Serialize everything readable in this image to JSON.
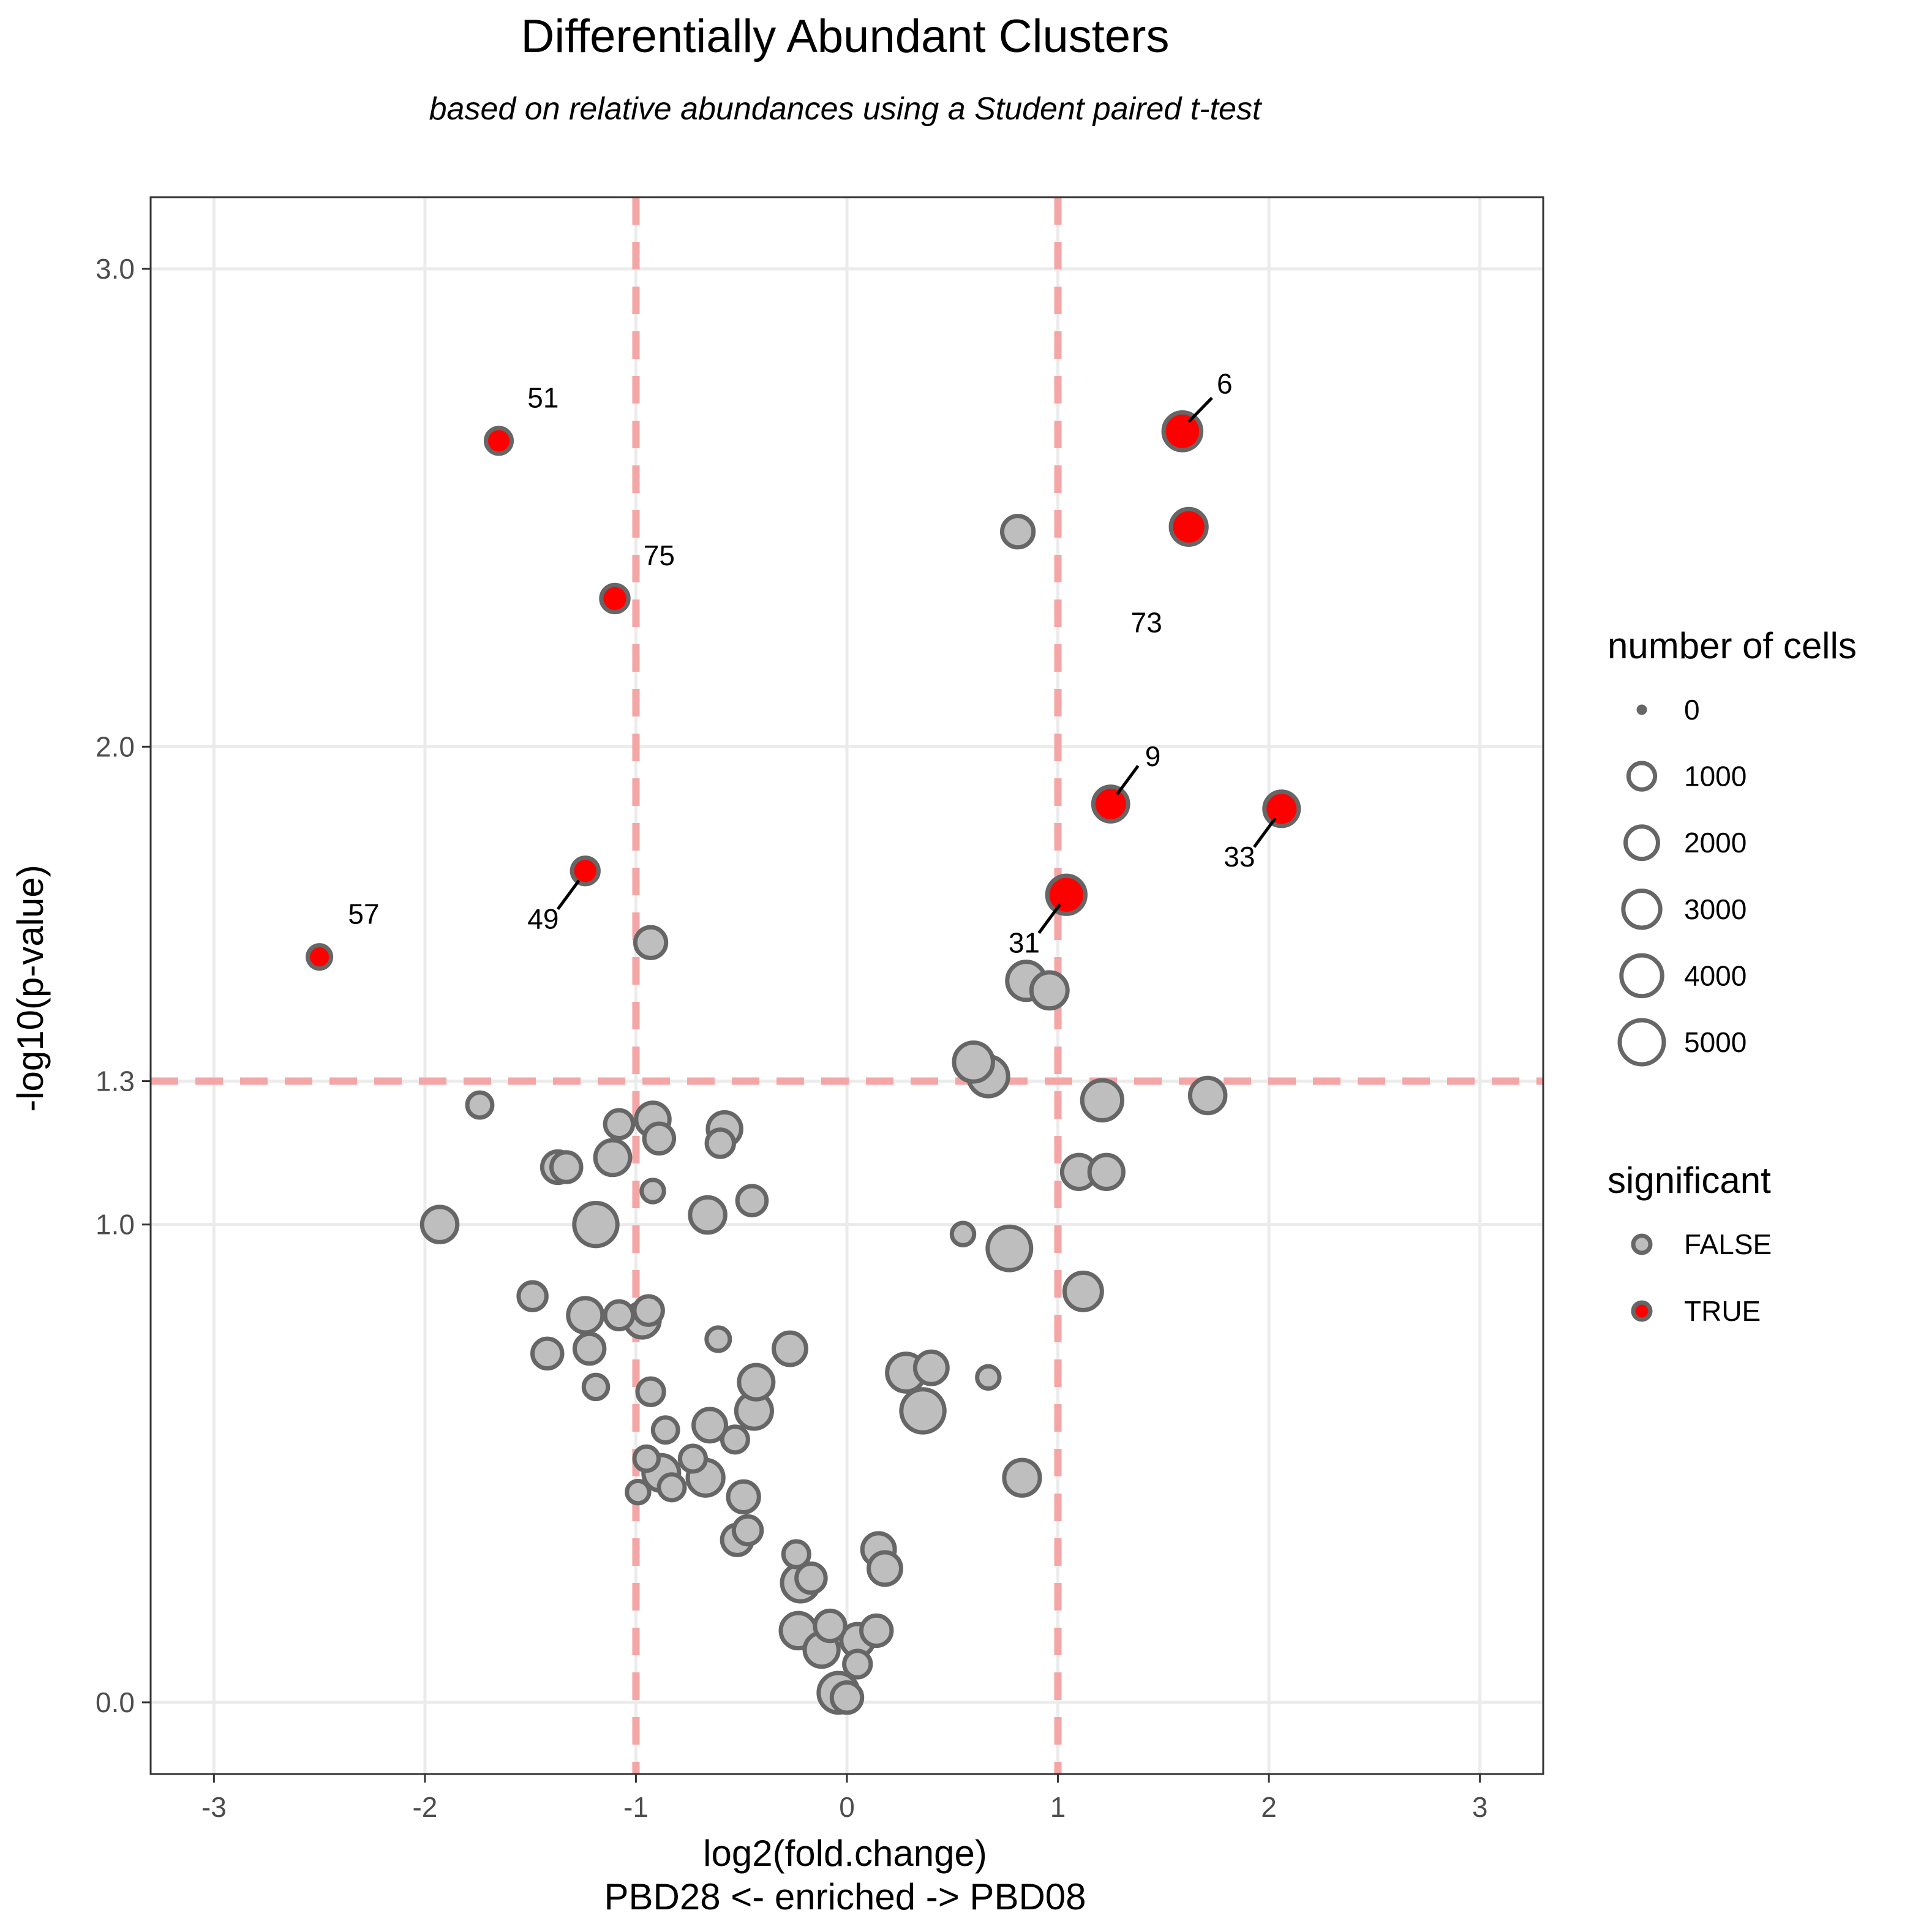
{
  "chart_data": {
    "type": "scatter",
    "title": "Differentially Abundant Clusters",
    "subtitle": "based on relative abundances using a Student paired t-test",
    "xlabel": "log2(fold.change)",
    "xlabel2": "PBD28 <- enriched -> PBD08",
    "ylabel": "-log10(p-value)",
    "xlim": [
      -3.3,
      3.3
    ],
    "ylim": [
      -0.15,
      3.15
    ],
    "x_ticks": [
      -3,
      -2,
      -1,
      0,
      1,
      2,
      3
    ],
    "x_tick_labels": [
      "-3",
      "-2",
      "-1",
      "0",
      "1",
      "2",
      "3"
    ],
    "y_ticks": [
      0.0,
      1.0,
      1.3,
      2.0,
      3.0
    ],
    "y_tick_labels": [
      "0.0",
      "1.0",
      "1.3",
      "2.0",
      "3.0"
    ],
    "thresholds": {
      "x": [
        -1,
        1
      ],
      "y": 1.3
    },
    "colors": {
      "significant": "#ff0000",
      "not_significant": "#bebebe",
      "stroke": "#666666",
      "threshold": "#f4a6a6",
      "grid": "#ebebeb"
    },
    "legend": {
      "size_title": "number of cells",
      "size_values": [
        0,
        1000,
        2000,
        3000,
        4000,
        5000
      ],
      "size_labels": [
        "0",
        "1000",
        "2000",
        "3000",
        "4000",
        "5000"
      ],
      "sig_title": "significant",
      "sig_labels": [
        "FALSE",
        "TRUE"
      ],
      "placement": "right"
    },
    "points": [
      {
        "x": 1.59,
        "y": 2.66,
        "cells": 3200,
        "sig": true,
        "label": "6"
      },
      {
        "x": 1.62,
        "y": 2.46,
        "cells": 2700,
        "sig": true,
        "label": "73"
      },
      {
        "x": -1.65,
        "y": 2.64,
        "cells": 900,
        "sig": true,
        "label": "51"
      },
      {
        "x": -1.1,
        "y": 2.31,
        "cells": 1100,
        "sig": true,
        "label": "75"
      },
      {
        "x": 1.25,
        "y": 1.88,
        "cells": 2500,
        "sig": true,
        "label": "9"
      },
      {
        "x": 2.06,
        "y": 1.87,
        "cells": 2400,
        "sig": true,
        "label": "33"
      },
      {
        "x": 1.04,
        "y": 1.69,
        "cells": 3300,
        "sig": true,
        "label": "31"
      },
      {
        "x": -1.24,
        "y": 1.74,
        "cells": 1000,
        "sig": true,
        "label": "49"
      },
      {
        "x": -2.5,
        "y": 1.56,
        "cells": 600,
        "sig": true,
        "label": "57"
      },
      {
        "x": 0.81,
        "y": 2.45,
        "cells": 1800,
        "sig": false
      },
      {
        "x": -0.93,
        "y": 1.59,
        "cells": 1700,
        "sig": false
      },
      {
        "x": 0.85,
        "y": 1.51,
        "cells": 3300,
        "sig": false
      },
      {
        "x": 0.96,
        "y": 1.49,
        "cells": 2800,
        "sig": false
      },
      {
        "x": 0.6,
        "y": 1.34,
        "cells": 3500,
        "sig": false
      },
      {
        "x": 0.67,
        "y": 1.31,
        "cells": 3700,
        "sig": false
      },
      {
        "x": 1.21,
        "y": 1.26,
        "cells": 3800,
        "sig": false
      },
      {
        "x": 1.71,
        "y": 1.27,
        "cells": 2600,
        "sig": false
      },
      {
        "x": 1.1,
        "y": 1.11,
        "cells": 2300,
        "sig": false
      },
      {
        "x": 1.23,
        "y": 1.11,
        "cells": 2300,
        "sig": false
      },
      {
        "x": 1.12,
        "y": 0.86,
        "cells": 3100,
        "sig": false
      },
      {
        "x": 0.77,
        "y": 0.95,
        "cells": 4800,
        "sig": false
      },
      {
        "x": 0.55,
        "y": 0.98,
        "cells": 500,
        "sig": false
      },
      {
        "x": -1.74,
        "y": 1.25,
        "cells": 800,
        "sig": false
      },
      {
        "x": -1.08,
        "y": 1.21,
        "cells": 1200,
        "sig": false
      },
      {
        "x": -0.92,
        "y": 1.22,
        "cells": 2200,
        "sig": false
      },
      {
        "x": -0.89,
        "y": 1.18,
        "cells": 1500,
        "sig": false
      },
      {
        "x": -0.58,
        "y": 1.2,
        "cells": 2200,
        "sig": false
      },
      {
        "x": -0.6,
        "y": 1.17,
        "cells": 1100,
        "sig": false
      },
      {
        "x": -1.11,
        "y": 1.14,
        "cells": 2500,
        "sig": false
      },
      {
        "x": -1.37,
        "y": 1.12,
        "cells": 1800,
        "sig": false
      },
      {
        "x": -1.33,
        "y": 1.12,
        "cells": 1500,
        "sig": false
      },
      {
        "x": -0.92,
        "y": 1.07,
        "cells": 500,
        "sig": false
      },
      {
        "x": -0.45,
        "y": 1.05,
        "cells": 1400,
        "sig": false
      },
      {
        "x": -0.66,
        "y": 1.02,
        "cells": 2600,
        "sig": false
      },
      {
        "x": -1.93,
        "y": 1.0,
        "cells": 2600,
        "sig": false
      },
      {
        "x": -1.19,
        "y": 1.0,
        "cells": 4700,
        "sig": false
      },
      {
        "x": -1.49,
        "y": 0.85,
        "cells": 1200,
        "sig": false
      },
      {
        "x": -1.24,
        "y": 0.81,
        "cells": 2400,
        "sig": false
      },
      {
        "x": -0.97,
        "y": 0.8,
        "cells": 2500,
        "sig": false
      },
      {
        "x": -1.08,
        "y": 0.81,
        "cells": 1200,
        "sig": false
      },
      {
        "x": -0.94,
        "y": 0.82,
        "cells": 1300,
        "sig": false
      },
      {
        "x": -0.61,
        "y": 0.76,
        "cells": 600,
        "sig": false
      },
      {
        "x": -0.27,
        "y": 0.74,
        "cells": 2000,
        "sig": false
      },
      {
        "x": -1.42,
        "y": 0.73,
        "cells": 1500,
        "sig": false
      },
      {
        "x": -1.22,
        "y": 0.74,
        "cells": 1500,
        "sig": false
      },
      {
        "x": -1.19,
        "y": 0.66,
        "cells": 700,
        "sig": false
      },
      {
        "x": -0.93,
        "y": 0.65,
        "cells": 1000,
        "sig": false
      },
      {
        "x": -0.43,
        "y": 0.67,
        "cells": 2400,
        "sig": false
      },
      {
        "x": -0.44,
        "y": 0.61,
        "cells": 2700,
        "sig": false
      },
      {
        "x": 0.28,
        "y": 0.69,
        "cells": 3200,
        "sig": false
      },
      {
        "x": 0.4,
        "y": 0.7,
        "cells": 2000,
        "sig": false
      },
      {
        "x": 0.67,
        "y": 0.68,
        "cells": 500,
        "sig": false
      },
      {
        "x": 0.36,
        "y": 0.61,
        "cells": 4700,
        "sig": false
      },
      {
        "x": -0.65,
        "y": 0.58,
        "cells": 2000,
        "sig": false
      },
      {
        "x": -0.86,
        "y": 0.57,
        "cells": 800,
        "sig": false
      },
      {
        "x": -0.53,
        "y": 0.55,
        "cells": 900,
        "sig": false
      },
      {
        "x": -0.95,
        "y": 0.51,
        "cells": 700,
        "sig": false
      },
      {
        "x": -0.73,
        "y": 0.51,
        "cells": 900,
        "sig": false
      },
      {
        "x": -0.88,
        "y": 0.48,
        "cells": 2700,
        "sig": false
      },
      {
        "x": -0.67,
        "y": 0.47,
        "cells": 2700,
        "sig": false
      },
      {
        "x": -0.83,
        "y": 0.45,
        "cells": 900,
        "sig": false
      },
      {
        "x": -0.99,
        "y": 0.44,
        "cells": 500,
        "sig": false
      },
      {
        "x": -0.49,
        "y": 0.43,
        "cells": 1700,
        "sig": false
      },
      {
        "x": 0.83,
        "y": 0.47,
        "cells": 2700,
        "sig": false
      },
      {
        "x": -0.47,
        "y": 0.36,
        "cells": 1200,
        "sig": false
      },
      {
        "x": -0.52,
        "y": 0.34,
        "cells": 1600,
        "sig": false
      },
      {
        "x": -0.24,
        "y": 0.31,
        "cells": 900,
        "sig": false
      },
      {
        "x": 0.15,
        "y": 0.32,
        "cells": 2000,
        "sig": false
      },
      {
        "x": 0.18,
        "y": 0.28,
        "cells": 2000,
        "sig": false
      },
      {
        "x": -0.22,
        "y": 0.25,
        "cells": 3000,
        "sig": false
      },
      {
        "x": -0.17,
        "y": 0.26,
        "cells": 1400,
        "sig": false
      },
      {
        "x": -0.23,
        "y": 0.15,
        "cells": 2600,
        "sig": false
      },
      {
        "x": -0.08,
        "y": 0.16,
        "cells": 1600,
        "sig": false
      },
      {
        "x": 0.14,
        "y": 0.15,
        "cells": 1600,
        "sig": false
      },
      {
        "x": 0.05,
        "y": 0.13,
        "cells": 2000,
        "sig": false
      },
      {
        "x": -0.12,
        "y": 0.11,
        "cells": 2300,
        "sig": false
      },
      {
        "x": 0.05,
        "y": 0.08,
        "cells": 1000,
        "sig": false
      },
      {
        "x": -0.04,
        "y": 0.02,
        "cells": 3700,
        "sig": false
      },
      {
        "x": 0.0,
        "y": 0.01,
        "cells": 1600,
        "sig": false
      }
    ],
    "labels": [
      {
        "text": "6",
        "x": 1.79,
        "y": 2.76,
        "line": [
          1.62,
          2.68,
          1.73,
          2.73
        ]
      },
      {
        "text": "73",
        "x": 1.42,
        "y": 2.26,
        "line": null
      },
      {
        "text": "51",
        "x": -1.44,
        "y": 2.73,
        "line": null
      },
      {
        "text": "75",
        "x": -0.89,
        "y": 2.4,
        "line": null
      },
      {
        "text": "9",
        "x": 1.45,
        "y": 1.98,
        "line": [
          1.28,
          1.9,
          1.38,
          1.96
        ]
      },
      {
        "text": "33",
        "x": 1.86,
        "y": 1.77,
        "line": [
          2.03,
          1.85,
          1.93,
          1.79
        ]
      },
      {
        "text": "31",
        "x": 0.84,
        "y": 1.59,
        "line": [
          1.01,
          1.67,
          0.91,
          1.61
        ]
      },
      {
        "text": "49",
        "x": -1.44,
        "y": 1.64,
        "line": [
          -1.27,
          1.72,
          -1.37,
          1.66
        ]
      },
      {
        "text": "57",
        "x": -2.29,
        "y": 1.65,
        "line": null
      }
    ]
  }
}
